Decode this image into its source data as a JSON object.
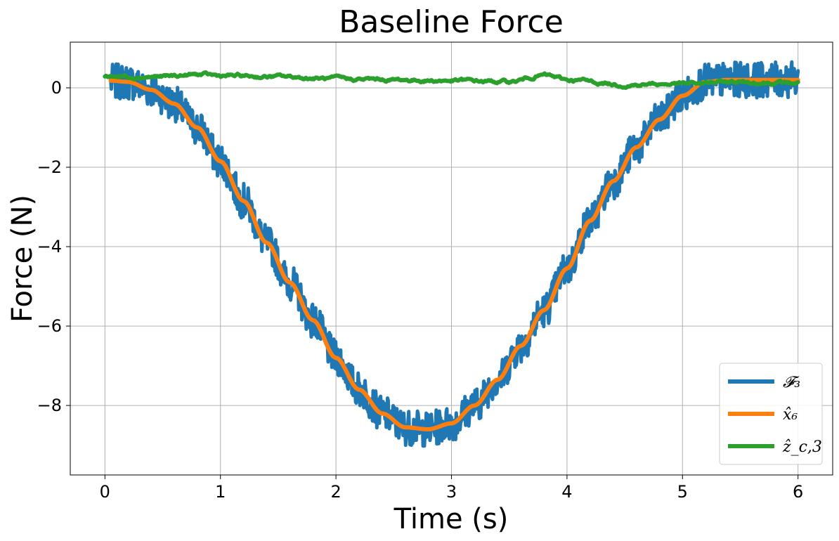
{
  "chart_data": {
    "type": "line",
    "title": "Baseline Force",
    "xlabel": "Time (s)",
    "ylabel": "Force (N)",
    "xlim": [
      -0.3,
      6.3
    ],
    "ylim": [
      -9.75,
      1.15
    ],
    "xticks": [
      0,
      1,
      2,
      3,
      4,
      5,
      6
    ],
    "xtick_labels": [
      "0",
      "1",
      "2",
      "3",
      "4",
      "5",
      "6"
    ],
    "yticks": [
      0,
      -2,
      -4,
      -6,
      -8
    ],
    "ytick_labels": [
      "0",
      "−2",
      "−4",
      "−6",
      "−8"
    ],
    "grid": true,
    "legend_position": "bottom-right",
    "series": [
      {
        "name": "𝓕₃",
        "color": "#1f77b4",
        "noisy": true,
        "noise_amplitude": 0.45,
        "x": [
          0.05,
          0.2,
          0.4,
          0.6,
          0.8,
          1.0,
          1.2,
          1.4,
          1.6,
          1.8,
          2.0,
          2.2,
          2.4,
          2.6,
          2.8,
          3.0,
          3.2,
          3.4,
          3.6,
          3.8,
          4.0,
          4.2,
          4.4,
          4.6,
          4.8,
          5.0,
          5.2,
          5.4,
          5.6,
          5.8,
          6.0
        ],
        "y": [
          0.15,
          0.15,
          -0.05,
          -0.4,
          -1.0,
          -1.85,
          -2.85,
          -3.9,
          -4.9,
          -5.85,
          -6.8,
          -7.6,
          -8.2,
          -8.55,
          -8.6,
          -8.45,
          -8.0,
          -7.35,
          -6.5,
          -5.6,
          -4.55,
          -3.35,
          -2.35,
          -1.5,
          -0.8,
          -0.2,
          0.15,
          0.2,
          0.2,
          0.2,
          0.2
        ]
      },
      {
        "name": "x̂₆",
        "color": "#ff7f0e",
        "noisy": false,
        "x": [
          0.05,
          0.2,
          0.4,
          0.6,
          0.8,
          1.0,
          1.2,
          1.4,
          1.6,
          1.8,
          2.0,
          2.2,
          2.4,
          2.6,
          2.8,
          3.0,
          3.2,
          3.4,
          3.6,
          3.8,
          4.0,
          4.2,
          4.4,
          4.6,
          4.8,
          5.0,
          5.2,
          5.4,
          5.6,
          5.8,
          6.0
        ],
        "y": [
          0.18,
          0.15,
          -0.05,
          -0.4,
          -1.0,
          -1.85,
          -2.85,
          -3.9,
          -4.9,
          -5.85,
          -6.8,
          -7.6,
          -8.2,
          -8.55,
          -8.6,
          -8.45,
          -8.0,
          -7.35,
          -6.5,
          -5.6,
          -4.55,
          -3.35,
          -2.35,
          -1.5,
          -0.8,
          -0.2,
          0.15,
          0.2,
          0.2,
          0.2,
          0.2
        ]
      },
      {
        "name": "ẑ_c,3",
        "color": "#2ca02c",
        "noisy": true,
        "noise_amplitude": 0.05,
        "x": [
          0.0,
          0.5,
          0.8,
          1.0,
          1.5,
          2.0,
          2.5,
          3.0,
          3.5,
          3.8,
          4.0,
          4.5,
          5.0,
          5.5,
          6.0
        ],
        "y": [
          0.3,
          0.28,
          0.33,
          0.3,
          0.28,
          0.22,
          0.2,
          0.18,
          0.15,
          0.32,
          0.2,
          0.08,
          0.1,
          0.15,
          0.12
        ]
      }
    ]
  }
}
